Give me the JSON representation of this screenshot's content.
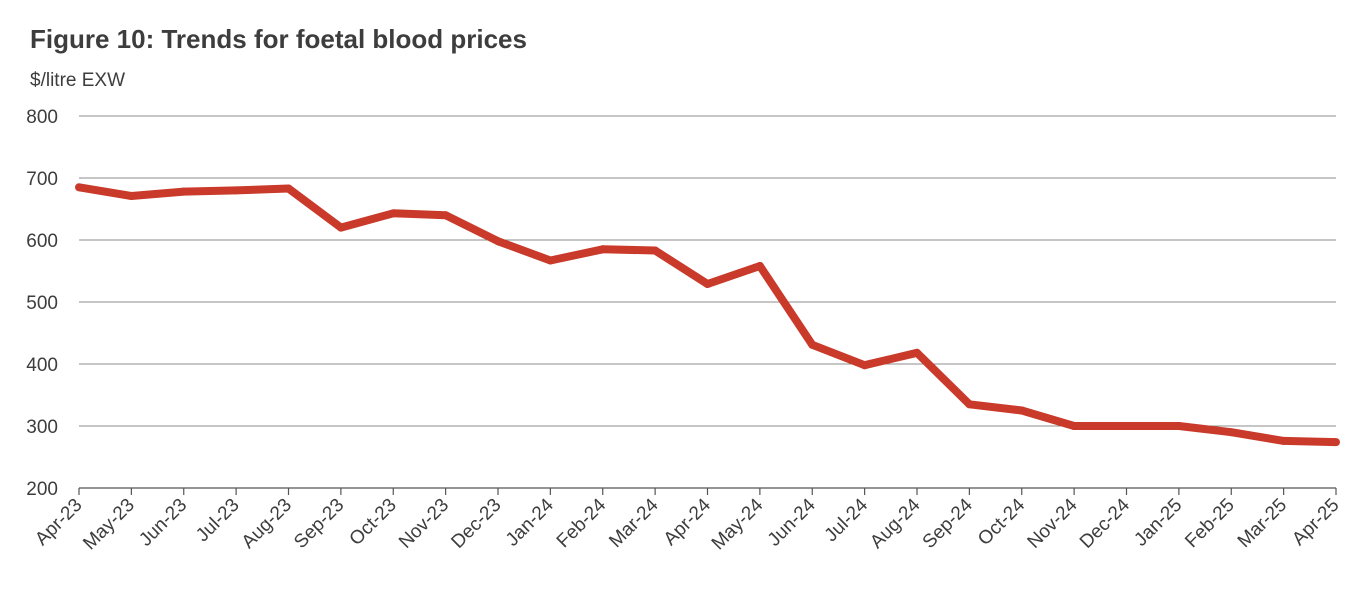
{
  "chart_data": {
    "type": "line",
    "title": "Figure 10: Trends for foetal blood prices",
    "ylabel": "$/litre EXW",
    "xlabel": "",
    "ylim": [
      200,
      800
    ],
    "yticks": [
      200,
      300,
      400,
      500,
      600,
      700,
      800
    ],
    "grid": "horizontal",
    "legend": "none",
    "categories": [
      "Apr-23",
      "May-23",
      "Jun-23",
      "Jul-23",
      "Aug-23",
      "Sep-23",
      "Oct-23",
      "Nov-23",
      "Dec-23",
      "Jan-24",
      "Feb-24",
      "Mar-24",
      "Apr-24",
      "May-24",
      "Jun-24",
      "Jul-24",
      "Aug-24",
      "Sep-24",
      "Oct-24",
      "Nov-24",
      "Dec-24",
      "Jan-25",
      "Feb-25",
      "Mar-25",
      "Apr-25"
    ],
    "series": [
      {
        "color": "#c93a2b",
        "values": [
          685,
          671,
          678,
          680,
          683,
          620,
          643,
          640,
          598,
          567,
          585,
          583,
          529,
          558,
          431,
          398,
          418,
          335,
          325,
          300,
          300,
          300,
          290,
          276,
          274
        ]
      }
    ]
  }
}
